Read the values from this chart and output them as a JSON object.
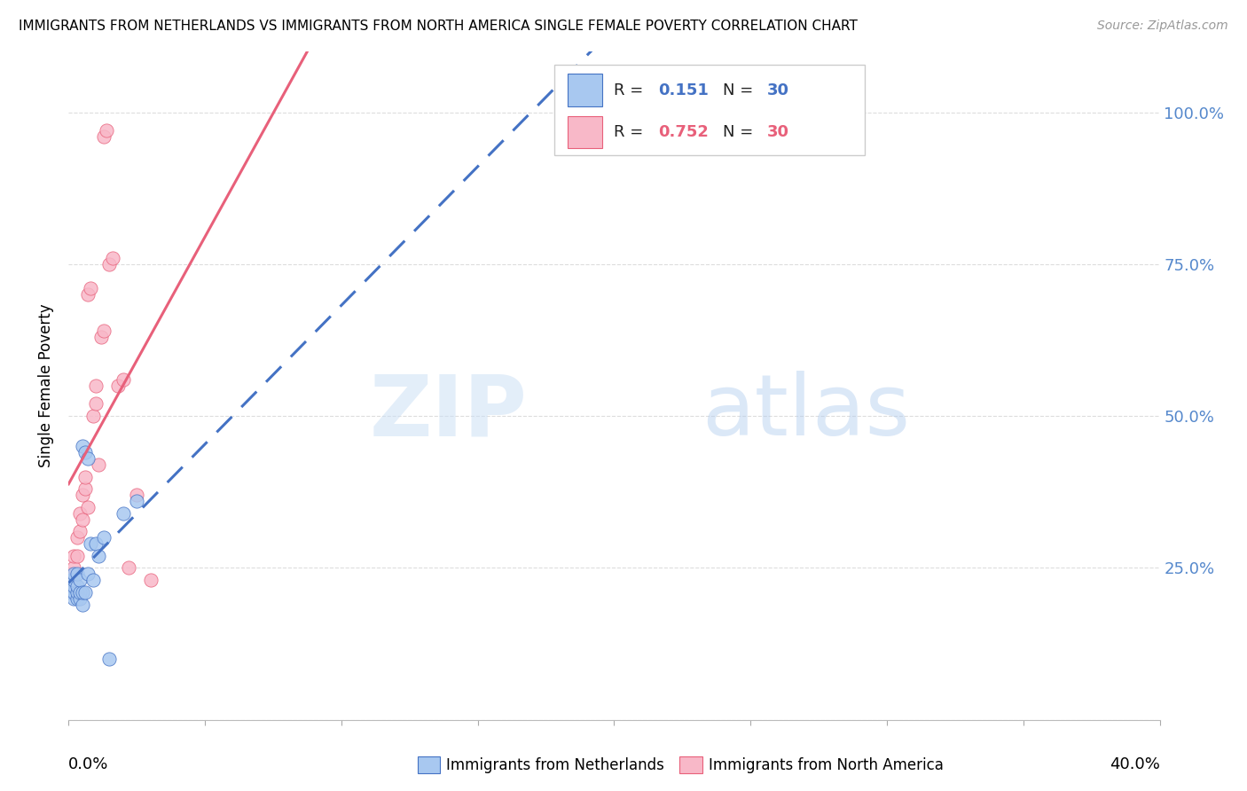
{
  "title": "IMMIGRANTS FROM NETHERLANDS VS IMMIGRANTS FROM NORTH AMERICA SINGLE FEMALE POVERTY CORRELATION CHART",
  "source": "Source: ZipAtlas.com",
  "ylabel": "Single Female Poverty",
  "legend_blue_R": "0.151",
  "legend_blue_N": "30",
  "legend_pink_R": "0.752",
  "legend_pink_N": "30",
  "legend_label_blue": "Immigrants from Netherlands",
  "legend_label_pink": "Immigrants from North America",
  "blue_scatter_x": [
    0.001,
    0.001,
    0.001,
    0.002,
    0.002,
    0.002,
    0.002,
    0.002,
    0.003,
    0.003,
    0.003,
    0.003,
    0.004,
    0.004,
    0.004,
    0.005,
    0.005,
    0.005,
    0.006,
    0.006,
    0.007,
    0.007,
    0.008,
    0.009,
    0.01,
    0.011,
    0.013,
    0.015,
    0.02,
    0.025
  ],
  "blue_scatter_y": [
    0.21,
    0.22,
    0.23,
    0.2,
    0.21,
    0.22,
    0.23,
    0.24,
    0.2,
    0.21,
    0.22,
    0.24,
    0.2,
    0.21,
    0.23,
    0.19,
    0.21,
    0.45,
    0.21,
    0.44,
    0.24,
    0.43,
    0.29,
    0.23,
    0.29,
    0.27,
    0.3,
    0.1,
    0.34,
    0.36
  ],
  "pink_scatter_x": [
    0.001,
    0.001,
    0.002,
    0.002,
    0.003,
    0.003,
    0.004,
    0.004,
    0.005,
    0.005,
    0.006,
    0.006,
    0.007,
    0.007,
    0.008,
    0.009,
    0.01,
    0.01,
    0.011,
    0.012,
    0.013,
    0.013,
    0.014,
    0.015,
    0.016,
    0.018,
    0.02,
    0.022,
    0.025,
    0.03
  ],
  "pink_scatter_y": [
    0.22,
    0.24,
    0.25,
    0.27,
    0.27,
    0.3,
    0.31,
    0.34,
    0.33,
    0.37,
    0.38,
    0.4,
    0.35,
    0.7,
    0.71,
    0.5,
    0.52,
    0.55,
    0.42,
    0.63,
    0.64,
    0.96,
    0.97,
    0.75,
    0.76,
    0.55,
    0.56,
    0.25,
    0.37,
    0.23
  ],
  "xlim": [
    0.0,
    0.4
  ],
  "ylim": [
    0.0,
    1.1
  ],
  "blue_dot_color": "#a8c8f0",
  "blue_line_color": "#4472c4",
  "pink_dot_color": "#f8b8c8",
  "pink_line_color": "#e8607a",
  "grid_color": "#dddddd",
  "background_color": "#ffffff",
  "right_axis_color": "#5588cc",
  "yticks": [
    0.0,
    0.25,
    0.5,
    0.75,
    1.0
  ],
  "ytick_labels_right": [
    "",
    "25.0%",
    "50.0%",
    "75.0%",
    "100.0%"
  ]
}
